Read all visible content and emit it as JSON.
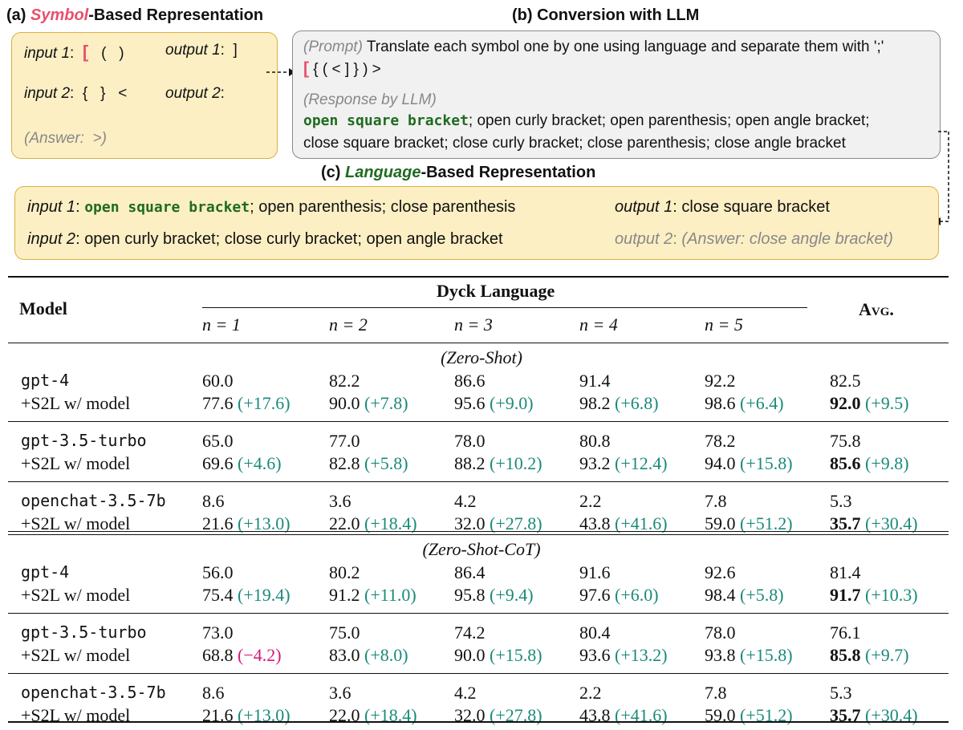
{
  "panel_a": {
    "label": "(a) ",
    "title_em": "Symbol",
    "title_rest": "-Based Representation",
    "input1_label": "input 1",
    "input1_red": "[",
    "input1_rest": "(   )",
    "output1_label": "output 1",
    "output1_value": "]",
    "input2_label": "input 2",
    "input2_value": "{   }   <",
    "output2_label": "output 2",
    "answer": "(Answer:  >)"
  },
  "panel_b": {
    "title": "(b) Conversion with LLM",
    "prompt_tag": "(Prompt)",
    "prompt_text": "Translate each symbol one by one using language and separate them with ';'",
    "symbols_red": "[",
    "symbols_rest": "{ ( < ] } ) >",
    "response_tag": "(Response by LLM)",
    "response_first": "open square bracket",
    "response_line1_rest": "; open curly bracket; open parenthesis; open angle bracket;",
    "response_line2": "close square bracket; close curly bracket; close parenthesis; close angle bracket"
  },
  "panel_c": {
    "label": "(c) ",
    "title_em": "Language",
    "title_rest": "-Based Representation",
    "input1_label": "input 1",
    "input1_bold": "open square bracket",
    "input1_rest": "; open parenthesis; close parenthesis",
    "output1_label": "output 1",
    "output1_value": "close square bracket",
    "input2_label": "input 2",
    "input2_value": "open curly bracket; close curly bracket; open angle bracket",
    "output2_label": "output 2",
    "output2_answer": "(Answer: close angle bracket)"
  },
  "table": {
    "model_header": "Model",
    "group_header": "Dyck Language",
    "avg_header": "Avg.",
    "columns": [
      "n = 1",
      "n = 2",
      "n = 3",
      "n = 4",
      "n = 5"
    ],
    "sections": [
      {
        "title": "(Zero-Shot)",
        "rows": [
          {
            "model": "gpt-4",
            "base": [
              "60.0",
              "82.2",
              "86.6",
              "91.4",
              "92.2",
              "82.5"
            ],
            "s2l_label": "+S2L w/ model",
            "s2l": [
              "77.6",
              "90.0",
              "95.6",
              "98.2",
              "98.6",
              "92.0"
            ],
            "delta": [
              "(+17.6)",
              "(+7.8)",
              "(+9.0)",
              "(+6.8)",
              "(+6.4)",
              "(+9.5)"
            ]
          },
          {
            "model": "gpt-3.5-turbo",
            "base": [
              "65.0",
              "77.0",
              "78.0",
              "80.8",
              "78.2",
              "75.8"
            ],
            "s2l_label": "+S2L w/ model",
            "s2l": [
              "69.6",
              "82.8",
              "88.2",
              "93.2",
              "94.0",
              "85.6"
            ],
            "delta": [
              "(+4.6)",
              "(+5.8)",
              "(+10.2)",
              "(+12.4)",
              "(+15.8)",
              "(+9.8)"
            ]
          },
          {
            "model": "openchat-3.5-7b",
            "base": [
              "8.6",
              "3.6",
              "4.2",
              "2.2",
              "7.8",
              "5.3"
            ],
            "s2l_label": "+S2L w/ model",
            "s2l": [
              "21.6",
              "22.0",
              "32.0",
              "43.8",
              "59.0",
              "35.7"
            ],
            "delta": [
              "(+13.0)",
              "(+18.4)",
              "(+27.8)",
              "(+41.6)",
              "(+51.2)",
              "(+30.4)"
            ]
          }
        ]
      },
      {
        "title": "(Zero-Shot-CoT)",
        "rows": [
          {
            "model": "gpt-4",
            "base": [
              "56.0",
              "80.2",
              "86.4",
              "91.6",
              "92.6",
              "81.4"
            ],
            "s2l_label": "+S2L w/ model",
            "s2l": [
              "75.4",
              "91.2",
              "95.8",
              "97.6",
              "98.4",
              "91.7"
            ],
            "delta": [
              "(+19.4)",
              "(+11.0)",
              "(+9.4)",
              "(+6.0)",
              "(+5.8)",
              "(+10.3)"
            ]
          },
          {
            "model": "gpt-3.5-turbo",
            "base": [
              "73.0",
              "75.0",
              "74.2",
              "80.4",
              "78.0",
              "76.1"
            ],
            "s2l_label": "+S2L w/ model",
            "s2l": [
              "68.8",
              "83.0",
              "90.0",
              "93.6",
              "93.8",
              "85.8"
            ],
            "delta": [
              "(−4.2)",
              "(+8.0)",
              "(+15.8)",
              "(+13.2)",
              "(+15.8)",
              "(+9.7)"
            ]
          },
          {
            "model": "openchat-3.5-7b",
            "base": [
              "8.6",
              "3.6",
              "4.2",
              "2.2",
              "7.8",
              "5.3"
            ],
            "s2l_label": "+S2L w/ model",
            "s2l": [
              "21.6",
              "22.0",
              "32.0",
              "43.8",
              "59.0",
              "35.7"
            ],
            "delta": [
              "(+13.0)",
              "(+18.4)",
              "(+27.8)",
              "(+41.6)",
              "(+51.2)",
              "(+30.4)"
            ]
          }
        ]
      }
    ]
  },
  "colors": {
    "symbol_pink": "#e8506b",
    "language_green": "#1f6b1f",
    "delta_teal": "#1a8a7a",
    "delta_negative": "#d6177a",
    "box_yellow": "#fcefc4",
    "box_gray": "#f1f1f1"
  }
}
